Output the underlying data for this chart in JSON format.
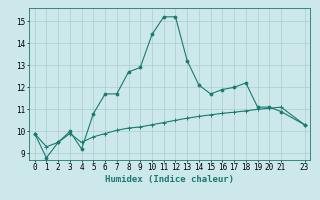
{
  "xlabel": "Humidex (Indice chaleur)",
  "background_color": "#cce8ea",
  "grid_color": "#aacccc",
  "line1_x": [
    0,
    1,
    2,
    3,
    4,
    5,
    6,
    7,
    8,
    9,
    10,
    11,
    12,
    13,
    14,
    15,
    16,
    17,
    18,
    19,
    20,
    21,
    23
  ],
  "line1_y": [
    9.9,
    8.8,
    9.5,
    10.0,
    9.2,
    10.8,
    11.7,
    11.7,
    12.7,
    12.9,
    14.4,
    15.2,
    15.2,
    13.2,
    12.1,
    11.7,
    11.9,
    12.0,
    12.2,
    11.1,
    11.1,
    10.9,
    10.3
  ],
  "line2_x": [
    0,
    1,
    2,
    3,
    4,
    5,
    6,
    7,
    8,
    9,
    10,
    11,
    12,
    13,
    14,
    15,
    16,
    17,
    18,
    19,
    20,
    21,
    23
  ],
  "line2_y": [
    9.9,
    9.3,
    9.5,
    9.9,
    9.5,
    9.75,
    9.9,
    10.05,
    10.15,
    10.2,
    10.3,
    10.4,
    10.5,
    10.6,
    10.68,
    10.75,
    10.82,
    10.87,
    10.93,
    11.0,
    11.05,
    11.1,
    10.3
  ],
  "line_color": "#1a7a6e",
  "ylim": [
    8.7,
    15.6
  ],
  "xlim": [
    -0.5,
    23.5
  ],
  "yticks": [
    9,
    10,
    11,
    12,
    13,
    14,
    15
  ],
  "xticks": [
    0,
    1,
    2,
    3,
    4,
    5,
    6,
    7,
    8,
    9,
    10,
    11,
    12,
    13,
    14,
    15,
    16,
    17,
    18,
    19,
    20,
    21,
    23
  ],
  "tick_fontsize": 5.5,
  "xlabel_fontsize": 6.5
}
